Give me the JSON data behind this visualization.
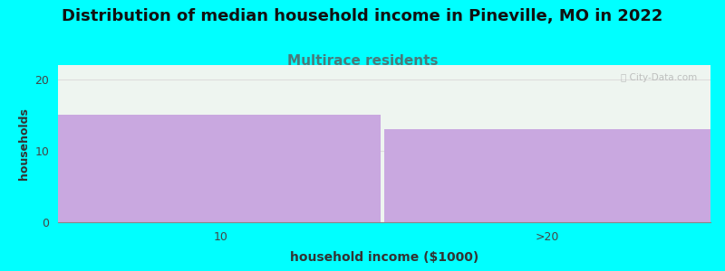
{
  "title": "Distribution of median household income in Pineville, MO in 2022",
  "subtitle": "Multirace residents",
  "xlabel": "household income ($1000)",
  "ylabel": "households",
  "categories": [
    "10",
    ">20"
  ],
  "values": [
    15,
    13
  ],
  "bar_color": "#c9a8e0",
  "background_color": "#00ffff",
  "plot_bg_color": "#eef5f0",
  "title_color": "#111111",
  "subtitle_color": "#4a7a7a",
  "xlabel_color": "#333333",
  "ylabel_color": "#333333",
  "tick_color": "#444444",
  "ylim": [
    0,
    22
  ],
  "yticks": [
    0,
    10,
    20
  ],
  "grid_color": "#dddddd",
  "watermark": "ⓘ City-Data.com",
  "title_fontsize": 13,
  "subtitle_fontsize": 11,
  "label_fontsize": 9
}
